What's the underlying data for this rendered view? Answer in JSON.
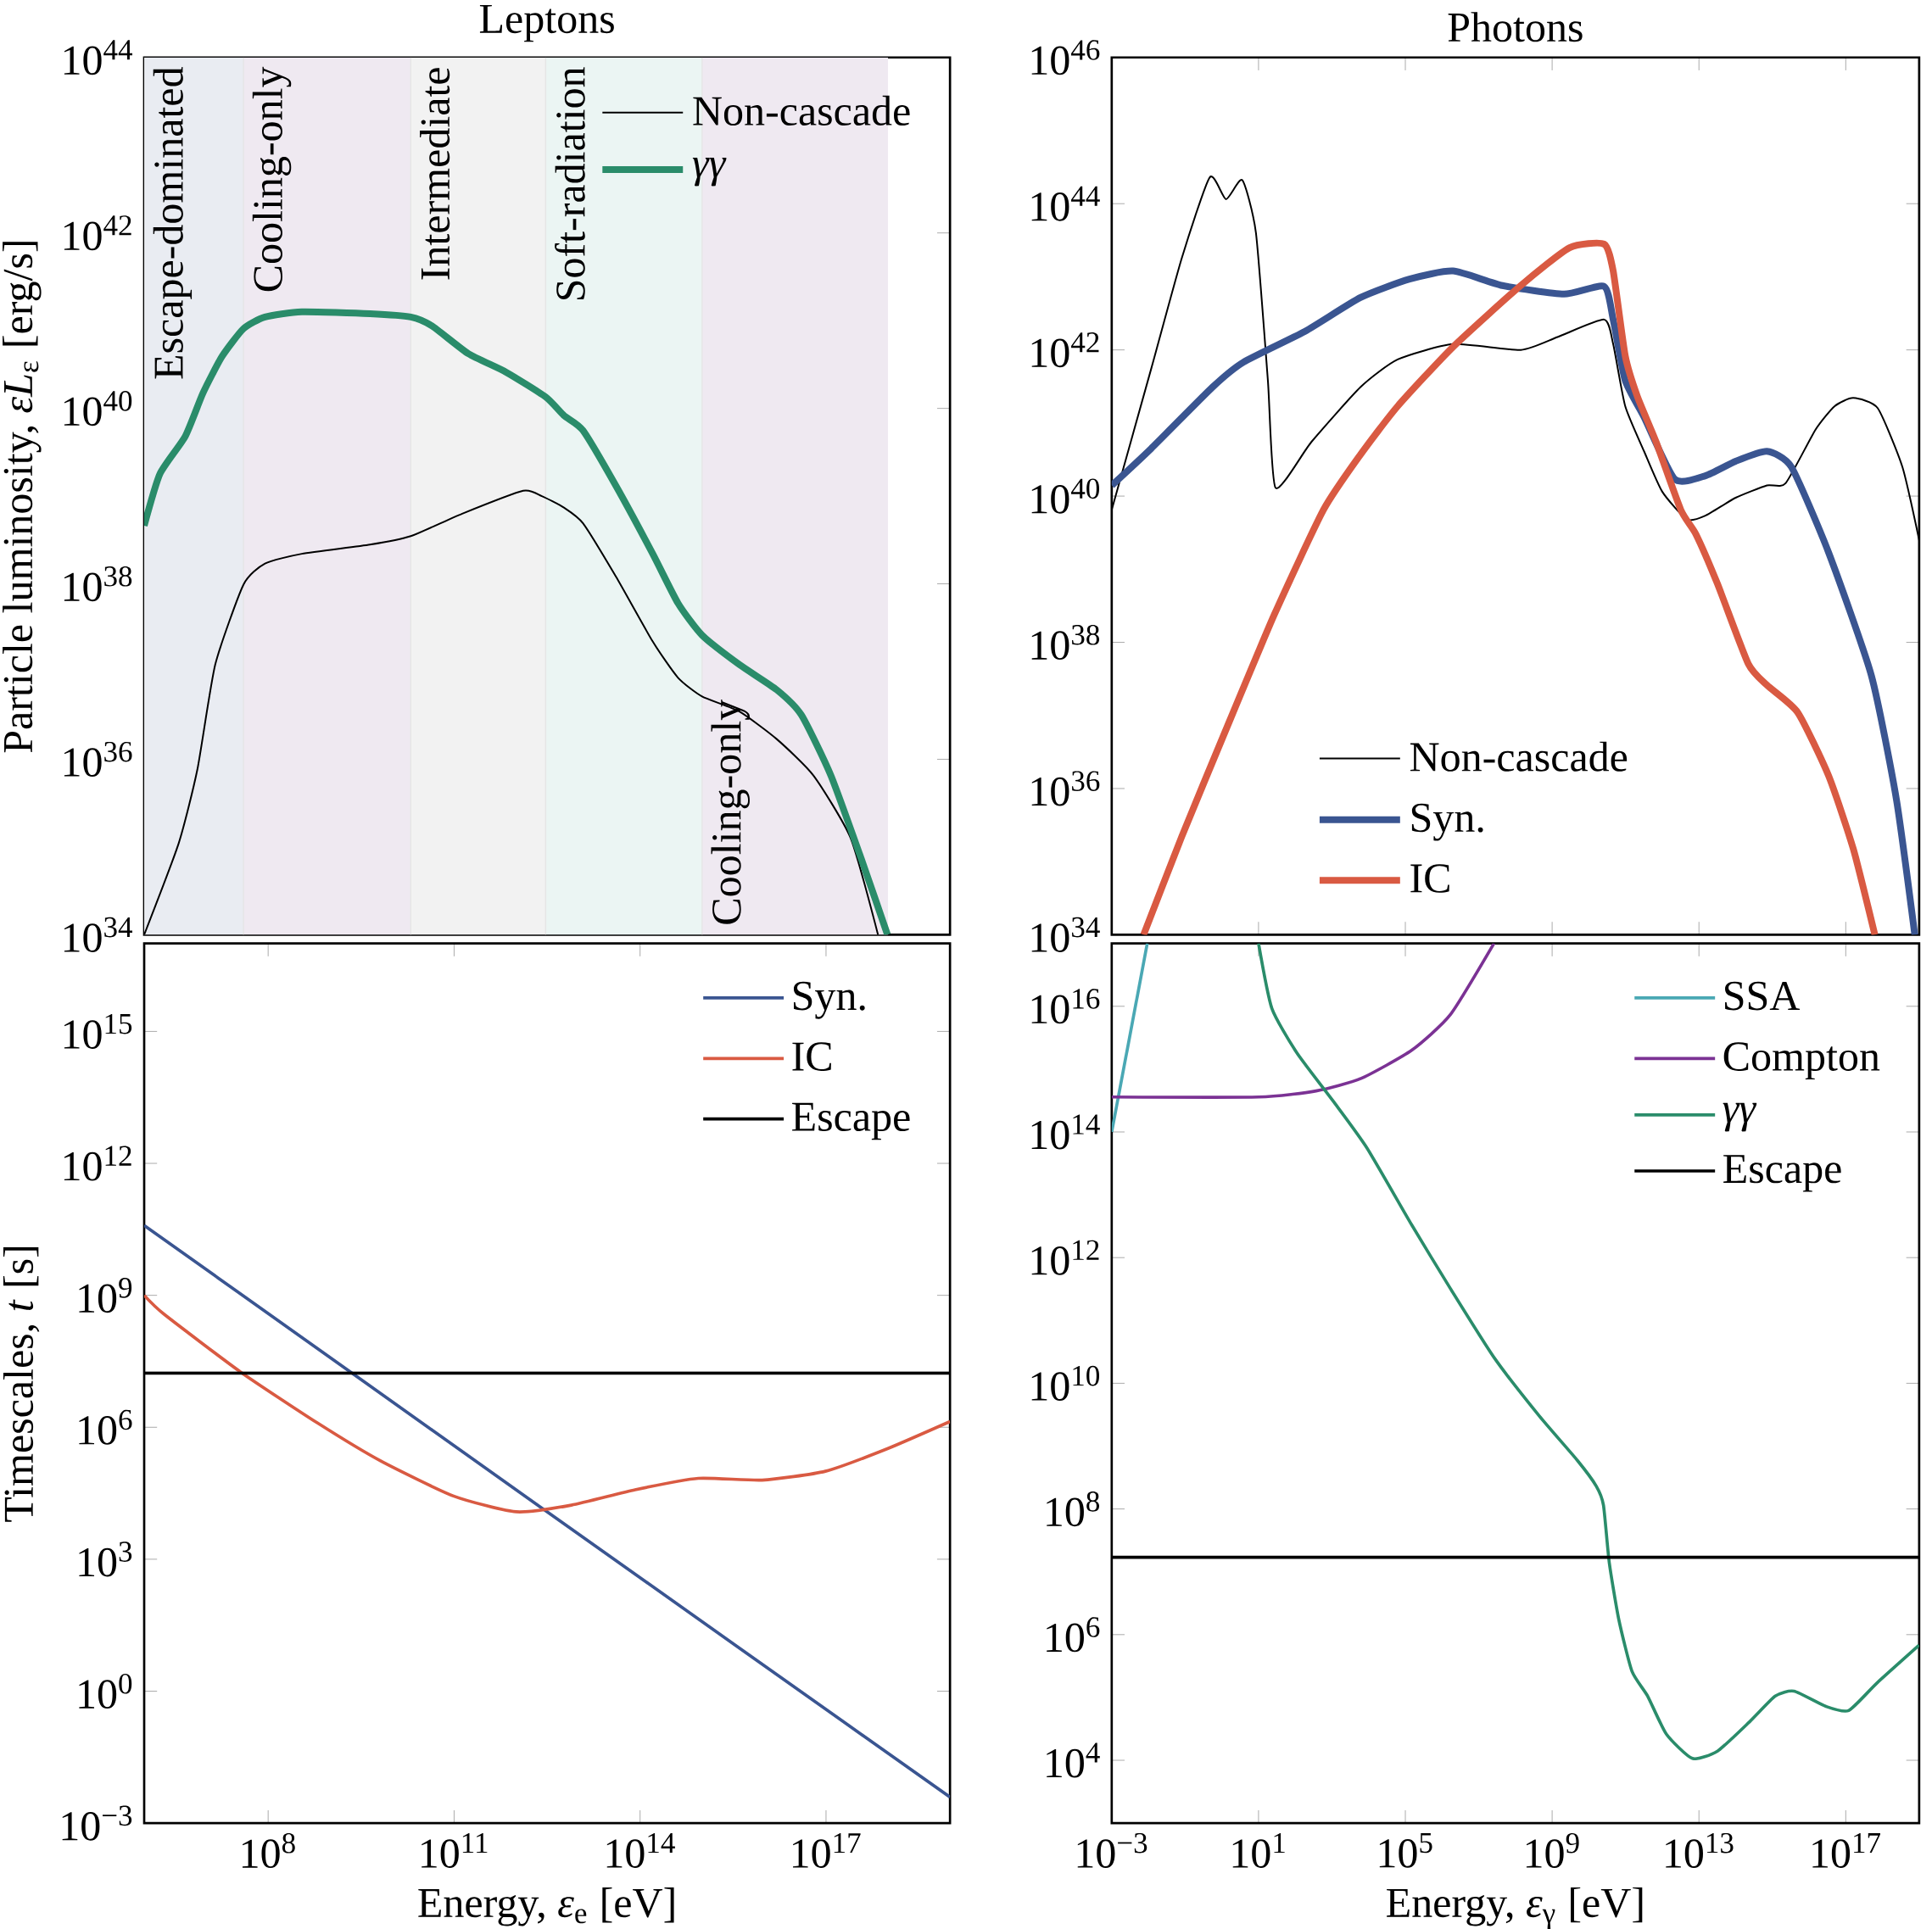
{
  "chart_data": [
    {
      "type": "line",
      "title": "Leptons",
      "ylabel": "Particle luminosity, *εL*$_{ε}$ [erg/s]",
      "log": "xy",
      "xlim": [
        1000000.0,
        1e+19
      ],
      "ylim": [
        1e+34,
        1e+44
      ],
      "xticks": [
        {
          "value": 100000000.0,
          "label": null
        },
        {
          "value": 100000000000.0,
          "label": null
        },
        {
          "value": 100000000000000.0,
          "label": null
        },
        {
          "value": 1e+17,
          "label": null
        }
      ],
      "yticks": [
        {
          "value": 1e+34,
          "label": "10$^{34}$"
        },
        {
          "value": 1e+36,
          "label": "10$^{36}$"
        },
        {
          "value": 1e+38,
          "label": "10$^{38}$"
        },
        {
          "value": 1e+40,
          "label": "10$^{40}$"
        },
        {
          "value": 1e+42,
          "label": "10$^{42}$"
        },
        {
          "value": 1e+44,
          "label": "10$^{44}$"
        }
      ],
      "tick_labels": "y",
      "legend": "top right",
      "bands": [
        {
          "axis": "x",
          "from": 1000000.0,
          "to": 40000000.0,
          "label": "Escape-dominated",
          "color": "#e9ecf2"
        },
        {
          "axis": "x",
          "from": 40000000.0,
          "to": 20000000000.0,
          "label": "Cooling-only",
          "color": "#efe9f1"
        },
        {
          "axis": "x",
          "from": 20000000000.0,
          "to": 3000000000000.0,
          "label": "Intermediate",
          "color": "#f2f2f2"
        },
        {
          "axis": "x",
          "from": 3000000000000.0,
          "to": 1000000000000000.0,
          "label": "Soft-radiation",
          "color": "#ebf5f3"
        },
        {
          "axis": "x",
          "from": 1000000000000000.0,
          "to": 1e+18,
          "label": "Cooling-only",
          "color": "#efe9f1"
        }
      ],
      "series": [
        {
          "name": "Non-cascade",
          "color": "#000000",
          "x": [
            1000000.0,
            3600000.0,
            7200000.0,
            14000000.0,
            40000000.0,
            89000000.0,
            350000000.0,
            4400000000.0,
            20000000000.0,
            135000000000.0,
            1300000000000.0,
            2600000000000.0,
            5900000000000.0,
            12000000000000.0,
            41000000000000.0,
            160000000000000.0,
            410000000000000.0,
            1000000000000000.0,
            4000000000000000.0,
            1.6e+16,
            6.3e+16,
            2.5e+17,
            6.9e+17
          ],
          "values": [
            1e+34,
            1.1e+35,
            7.6e+35,
            1.2e+37,
            9.8e+37,
            1.7e+38,
            2.2e+38,
            2.8e+38,
            3.5e+38,
            6.3e+38,
            1.15e+39,
            1e+39,
            7.4e+38,
            4.9e+38,
            1.2e+38,
            2.2e+37,
            8.5e+36,
            5.2e+36,
            3.5e+36,
            1.7e+36,
            6.5e+35,
            1.26e+35,
            1e+34
          ]
        },
        {
          "name": "*γγ*",
          "color": "#2a8c6a",
          "x": [
            1000000.0,
            1800000.0,
            4600000.0,
            8900000.0,
            18000000.0,
            40000000.0,
            89000000.0,
            350000000.0,
            4400000000.0,
            20000000000.0,
            44000000000.0,
            170000000000.0,
            680000000000.0,
            3000000000000.0,
            5900000000000.0,
            12000000000000.0,
            41000000000000.0,
            160000000000000.0,
            410000000000000.0,
            1000000000000000.0,
            4000000000000000.0,
            1.6e+16,
            4e+16,
            1.2e+17,
            3.9e+17,
            9.8e+17
          ],
          "values": [
            4.6e+38,
            1.8e+39,
            4.8e+39,
            1.5e+40,
            3.9e+40,
            8.1e+40,
            1.1e+41,
            1.26e+41,
            1.2e+41,
            1.1e+41,
            8.7e+40,
            4.2e+40,
            2.6e+40,
            1.35e+40,
            8.3e+39,
            5.6e+39,
            1.3e+39,
            2.2e+38,
            6e+37,
            2.6e+37,
            1.2e+37,
            6.2e+36,
            3.2e+36,
            6.5e+35,
            6.6e+34,
            1e+34
          ]
        }
      ]
    },
    {
      "type": "line",
      "title": "Photons",
      "log": "xy",
      "xlim": [
        0.001,
        1e+19
      ],
      "ylim": [
        1e+34,
        1e+46
      ],
      "xticks": [
        {
          "value": 0.001,
          "label": null
        },
        {
          "value": 10.0,
          "label": null
        },
        {
          "value": 100000.0,
          "label": null
        },
        {
          "value": 1000000000.0,
          "label": null
        },
        {
          "value": 10000000000000.0,
          "label": null
        },
        {
          "value": 1e+17,
          "label": null
        }
      ],
      "yticks": [
        {
          "value": 1e+34,
          "label": "10$^{34}$"
        },
        {
          "value": 1e+36,
          "label": "10$^{36}$"
        },
        {
          "value": 1e+38,
          "label": "10$^{38}$"
        },
        {
          "value": 1e+40,
          "label": "10$^{40}$"
        },
        {
          "value": 1e+42,
          "label": "10$^{42}$"
        },
        {
          "value": 1e+44,
          "label": "10$^{44}$"
        },
        {
          "value": 1e+46,
          "label": "10$^{46}$"
        }
      ],
      "tick_labels": "y",
      "legend": "bottom",
      "series": [
        {
          "name": "Non-cascade",
          "color": "#000000",
          "x": [
            0.001,
            0.012,
            0.081,
            0.47,
            1.3,
            3.6,
            8.5,
            18,
            29,
            275,
            6000,
            62000.0,
            2000000.0,
            140000000.0,
            1400000000.0,
            26000000000.0,
            46000000000.0,
            98000000000.0,
            320000000000.0,
            1000000000000.0,
            4700000000000.0,
            15000000000000.0,
            100000000000000.0,
            710000000000000.0,
            2300000000000000.0,
            1.5e+16,
            5e+16,
            1.6e+17,
            7.4e+17,
            3.5e+18,
            1e+19
          ],
          "values": [
            6.5e+39,
            5.6e+41,
            1.8e+43,
            2.3e+44,
            1.15e+44,
            2.1e+44,
            4e+43,
            3.8e+41,
            1.3e+40,
            5.5e+40,
            3.1e+41,
            7.4e+41,
            1.2e+42,
            1e+42,
            1.5e+42,
            2.6e+42,
            1.2e+42,
            1.7e+41,
            4.1e+40,
            1.15e+40,
            4.8e+39,
            5.4e+39,
            9.5e+39,
            1.4e+40,
            1.5e+40,
            8.1e+40,
            1.7e+41,
            2.2e+41,
            1.6e+41,
            2.5e+40,
            2.5e+39
          ]
        },
        {
          "name": "Syn.",
          "color": "#3a5591",
          "x": [
            0.001,
            0.012,
            0.56,
            3.9,
            186,
            6000,
            130000.0,
            2000000.0,
            44000000.0,
            2100000000.0,
            26000000000.0,
            46000000000.0,
            98000000000.0,
            320000000000.0,
            2200000000000.0,
            15000000000000.0,
            100000000000000.0,
            710000000000000.0,
            3300000000000000.0,
            3.4e+16,
            5e+17,
            2.4e+18,
            7.6e+18
          ],
          "values": [
            1.4e+40,
            4.5e+40,
            3.1e+41,
            6.8e+41,
            1.8e+42,
            5.2e+42,
            9.3e+42,
            1.2e+43,
            7.6e+42,
            5.8e+42,
            7.4e+42,
            2.6e+42,
            3.8e+41,
            1.2e+41,
            1.7e+40,
            1.9e+40,
            3e+40,
            4.1e+40,
            2.5e+40,
            1.7e+39,
            3.5e+37,
            7.1e+35,
            1e+34
          ]
        },
        {
          "name": "IC",
          "color": "#d95a42",
          "x": [
            0.0074,
            0.081,
            1.23,
            27,
            590,
            6000,
            62000.0,
            2000000.0,
            140000000.0,
            3000000000.0,
            26000000000.0,
            46000000000.0,
            98000000000.0,
            210000000000.0,
            680000000000.0,
            3200000000000.0,
            8300000000000.0,
            32000000000000.0,
            220000000000000.0,
            710000000000000.0,
            4900000000000000.0,
            3.4e+16,
            1.6e+17,
            6.2e+17
          ],
          "values": [
            1e+34,
            2.2e+35,
            6e+36,
            2.4e+38,
            6.5e+39,
            3.7e+40,
            1.7e+41,
            1.1e+42,
            7.6e+42,
            2.5e+43,
            2.8e+43,
            1.2e+43,
            8.3e+41,
            2.3e+41,
            5.5e+40,
            6.5e+39,
            3e+39,
            6.3e+38,
            5.1e+37,
            2.6e+37,
            1.1e+37,
            1.5e+36,
            1.5e+35,
            1e+34
          ]
        }
      ]
    },
    {
      "type": "line",
      "xlabel": "Energy, *ε*$_{e}$ [eV]",
      "ylabel": "Timescales, *t* [s]",
      "log": "xy",
      "xlim": [
        1000000.0,
        1e+19
      ],
      "ylim": [
        0.001,
        1e+17
      ],
      "xticks": [
        {
          "value": 100000000.0,
          "label": "10$^{8}$"
        },
        {
          "value": 100000000000.0,
          "label": "10$^{11}$"
        },
        {
          "value": 100000000000000.0,
          "label": "10$^{14}$"
        },
        {
          "value": 1e+17,
          "label": "10$^{17}$"
        }
      ],
      "yticks": [
        {
          "value": 0.001,
          "label": "10$^{−3}$"
        },
        {
          "value": 1,
          "label": "10$^{0}$"
        },
        {
          "value": 1000.0,
          "label": "10$^{3}$"
        },
        {
          "value": 1000000.0,
          "label": "10$^{6}$"
        },
        {
          "value": 1000000000.0,
          "label": "10$^{9}$"
        },
        {
          "value": 1000000000000.0,
          "label": "10$^{12}$"
        },
        {
          "value": 1000000000000000.0,
          "label": "10$^{15}$"
        }
      ],
      "legend": "top right",
      "series": [
        {
          "name": "Syn.",
          "color": "#3a5591",
          "x": [
            1000000.0,
            3000000000000.0,
            1e+19
          ],
          "values": [
            39000000000.0,
            12600.0,
            0.0039
          ]
        },
        {
          "name": "IC",
          "color": "#d95a42",
          "x": [
            1000000.0,
            2100000.0,
            36000000.0,
            620000000.0,
            6600000000.0,
            100000000000.0,
            1000000000000.0,
            7800000000000.0,
            83000000000000.0,
            870000000000000.0,
            9300000000000000.0,
            9.8e+16,
            1e+18,
            1e+19
          ],
          "values": [
            1000000000.0,
            370000000.0,
            18000000.0,
            1260000.0,
            170000.0,
            27000.0,
            12000.0,
            17000.0,
            38000.0,
            69000.0,
            63000.0,
            100000.0,
            330000.0,
            1350000.0
          ]
        },
        {
          "name": "Escape",
          "color": "#000000",
          "x": [
            1000000.0,
            1e+19
          ],
          "values": [
            17000000.0,
            17000000.0
          ]
        }
      ]
    },
    {
      "type": "line",
      "xlabel": "Energy, *ε*$_{γ}$ [eV]",
      "log": "xy",
      "xlim": [
        0.001,
        1e+19
      ],
      "ylim": [
        1000.0,
        1e+17
      ],
      "xticks": [
        {
          "value": 0.001,
          "label": "10$^{−3}$"
        },
        {
          "value": 10.0,
          "label": "10$^{1}$"
        },
        {
          "value": 100000.0,
          "label": "10$^{5}$"
        },
        {
          "value": 1000000000.0,
          "label": "10$^{9}$"
        },
        {
          "value": 10000000000000.0,
          "label": "10$^{13}$"
        },
        {
          "value": 1e+17,
          "label": "10$^{17}$"
        }
      ],
      "yticks": [
        {
          "value": 10000.0,
          "label": "10$^{4}$"
        },
        {
          "value": 1000000.0,
          "label": "10$^{6}$"
        },
        {
          "value": 100000000.0,
          "label": "10$^{8}$"
        },
        {
          "value": 10000000000.0,
          "label": "10$^{10}$"
        },
        {
          "value": 1000000000000.0,
          "label": "10$^{12}$"
        },
        {
          "value": 100000000000000.0,
          "label": "10$^{14}$"
        },
        {
          "value": 1e+16,
          "label": "10$^{16}$"
        }
      ],
      "legend": "top right",
      "series": [
        {
          "name": "SSA",
          "color": "#4aa8b4",
          "x": [
            0.001,
            0.0093
          ],
          "values": [
            100000000000000.0,
            1e+17
          ]
        },
        {
          "name": "Compton",
          "color": "#7b3294",
          "x": [
            0.001,
            10,
            370,
            6200,
            150000.0,
            1700000.0,
            26000000.0
          ],
          "values": [
            360000000000000.0,
            360000000000000.0,
            450000000000000.0,
            710000000000000.0,
            2000000000000000.0,
            7400000000000000.0,
            1e+17
          ]
        },
        {
          "name": "*γγ*",
          "color": "#2a8c6a",
          "x": [
            10,
            23,
            112,
            1230,
            9100,
            150000.0,
            1700000.0,
            27000000.0,
            450000000.0,
            4900000000.0,
            16000000000.0,
            25000000000.0,
            36000000000.0,
            66000000000.0,
            150000000000.0,
            400000000000.0,
            1300000000000.0,
            6600000000000.0,
            32000000000000.0,
            240000000000000.0,
            1200000000000000.0,
            3900000000000000.0,
            2.9e+16,
            1.2e+17,
            7.1e+17,
            1e+19
          ],
          "values": [
            1e+17,
            9300000000000000.0,
            1800000000000000.0,
            280000000000000.0,
            55000000000000.0,
            3300000000000.0,
            320000000000.0,
            25000000000.0,
            3000000000.0,
            590000000.0,
            230000000.0,
            115000000.0,
            14000000.0,
            1700000.0,
            260000.0,
            105000.0,
            26000.0,
            10700.0,
            14000.0,
            41000.0,
            105000.0,
            126000.0,
            72000.0,
            62000.0,
            170000.0,
            680000.0
          ]
        },
        {
          "name": "Escape",
          "color": "#000000",
          "x": [
            0.001,
            1e+19
          ],
          "values": [
            17000000.0,
            17000000.0
          ]
        }
      ]
    }
  ]
}
